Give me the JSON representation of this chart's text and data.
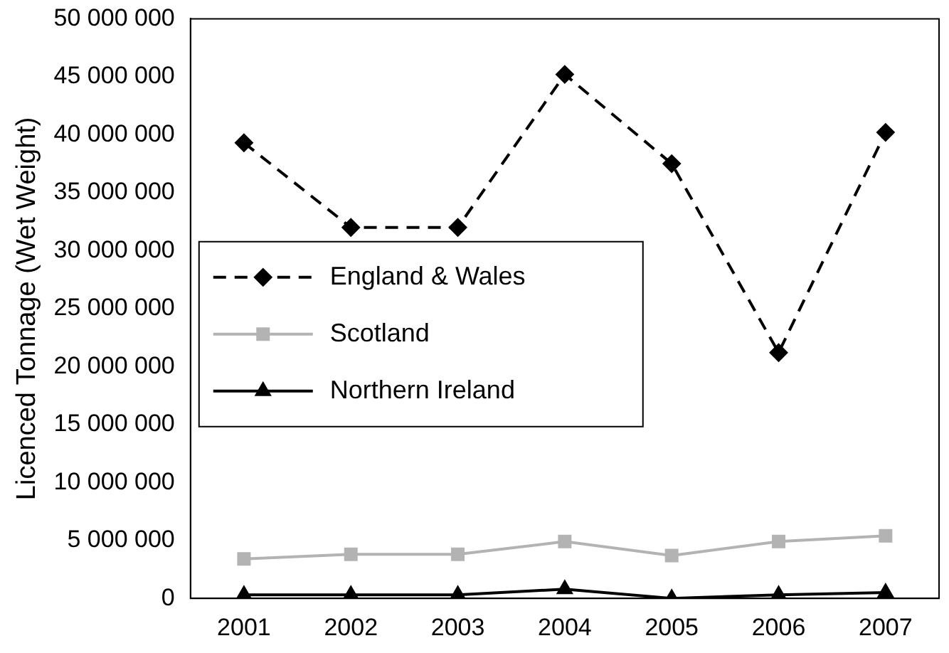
{
  "chart_data": {
    "type": "line",
    "ylabel": "Licenced Tonnage (Wet Weight)",
    "categories": [
      "2001",
      "2002",
      "2003",
      "2004",
      "2005",
      "2006",
      "2007"
    ],
    "series": [
      {
        "name": "England & Wales",
        "color": "#000000",
        "marker": "diamond",
        "line_style": "dashed",
        "values": [
          39300000,
          32000000,
          32000000,
          45200000,
          37500000,
          21200000,
          40200000
        ]
      },
      {
        "name": "Scotland",
        "color": "#b3b3b3",
        "marker": "square",
        "line_style": "solid",
        "values": [
          3400000,
          3800000,
          3800000,
          4900000,
          3700000,
          4900000,
          5400000
        ]
      },
      {
        "name": "Northern Ireland",
        "color": "#000000",
        "marker": "triangle",
        "line_style": "solid",
        "values": [
          300000,
          300000,
          300000,
          800000,
          0,
          300000,
          500000
        ]
      }
    ],
    "ylim": [
      0,
      50000000
    ],
    "yticks": [
      {
        "value": 0,
        "label": "0"
      },
      {
        "value": 5000000,
        "label": "5 000 000"
      },
      {
        "value": 10000000,
        "label": "10 000 000"
      },
      {
        "value": 15000000,
        "label": "15 000 000"
      },
      {
        "value": 20000000,
        "label": "20 000 000"
      },
      {
        "value": 25000000,
        "label": "25 000 000"
      },
      {
        "value": 30000000,
        "label": "30 000 000"
      },
      {
        "value": 35000000,
        "label": "35 000 000"
      },
      {
        "value": 40000000,
        "label": "40 000 000"
      },
      {
        "value": 45000000,
        "label": "45 000 000"
      },
      {
        "value": 50000000,
        "label": "50 000 000"
      }
    ],
    "grid": false,
    "legend": "left"
  }
}
